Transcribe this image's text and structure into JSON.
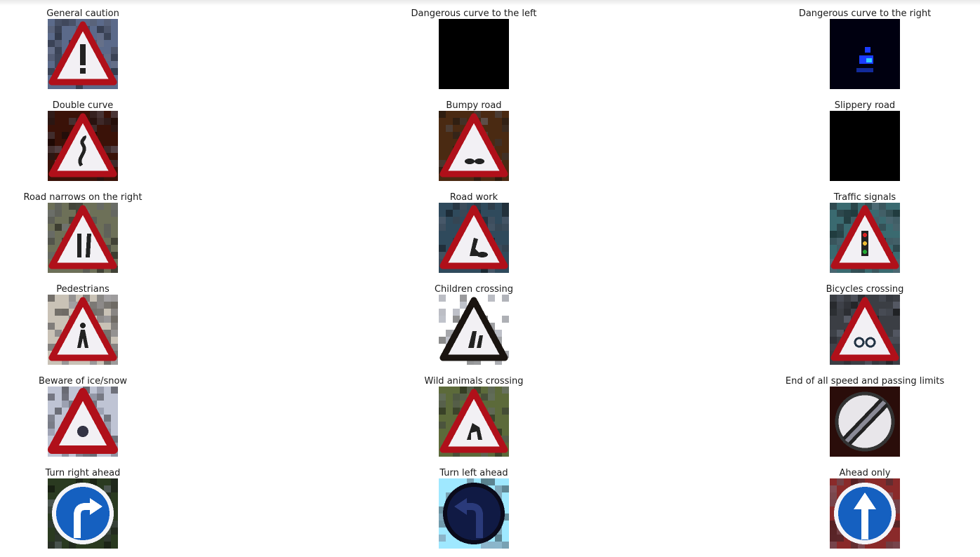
{
  "figure": {
    "panels": [
      {
        "title": "General caution",
        "sign": "warning",
        "background": "#5b6a8a",
        "symbol": "exclamation"
      },
      {
        "title": "Dangerous curve to the left",
        "sign": "black",
        "background": "#000000",
        "symbol": "none"
      },
      {
        "title": "Dangerous curve to the right",
        "sign": "dark",
        "background": "#000010",
        "symbol": "blue-speck"
      },
      {
        "title": "Double curve",
        "sign": "warning",
        "background": "#3a1208",
        "symbol": "double-curve"
      },
      {
        "title": "Bumpy road",
        "sign": "warning",
        "background": "#4a2a12",
        "symbol": "bumps"
      },
      {
        "title": "Slippery road",
        "sign": "black",
        "background": "#000000",
        "symbol": "none"
      },
      {
        "title": "Road narrows on the right",
        "sign": "warning",
        "background": "#6d7058",
        "symbol": "narrows"
      },
      {
        "title": "Road work",
        "sign": "warning",
        "background": "#2f4a5c",
        "symbol": "road-work"
      },
      {
        "title": "Traffic signals",
        "sign": "warning",
        "background": "#3a6a70",
        "symbol": "signals"
      },
      {
        "title": "Pedestrians",
        "sign": "warning",
        "background": "#c9c2b6",
        "symbol": "pedestrian"
      },
      {
        "title": "Children crossing",
        "sign": "warning-dark",
        "background": "#ffffff",
        "symbol": "children"
      },
      {
        "title": "Bicycles crossing",
        "sign": "warning",
        "background": "#3b3e44",
        "symbol": "bicycle"
      },
      {
        "title": "Beware of ice/snow",
        "sign": "warning-thick",
        "background": "#bfc4d4",
        "symbol": "snow"
      },
      {
        "title": "Wild animals crossing",
        "sign": "warning",
        "background": "#5c6a3a",
        "symbol": "deer"
      },
      {
        "title": "End of all speed and passing limits",
        "sign": "end-limits",
        "background": "#2a0d0a",
        "symbol": "stripe"
      },
      {
        "title": "Turn right ahead",
        "sign": "mandatory",
        "background": "#2a3a20",
        "symbol": "turn-right"
      },
      {
        "title": "Turn left ahead",
        "sign": "mandatory-dark",
        "background": "#9fe8ff",
        "symbol": "turn-left"
      },
      {
        "title": "Ahead only",
        "sign": "mandatory",
        "background": "#8a2a2a",
        "symbol": "ahead"
      }
    ]
  },
  "colors": {
    "sign_red": "#b0101a",
    "sign_white": "#f2f0f4",
    "sign_blue": "#1560c0",
    "sign_dark": "#1a1410"
  }
}
